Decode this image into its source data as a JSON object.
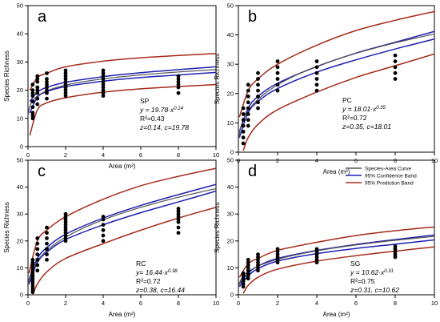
{
  "figure": {
    "xlabel": "Area",
    "xunit": "(m²)",
    "ylabel": "Species Richness",
    "legend": {
      "items": [
        {
          "label": "Species-Area Curve",
          "color": "#555555"
        },
        {
          "label": "95% Confidence Band",
          "color": "#1f1fb4"
        },
        {
          "label": "95% Prediction Band",
          "color": "#a52a1a"
        }
      ]
    }
  },
  "chart_data": [
    {
      "type": "scatter",
      "panel": "a",
      "site": "SP",
      "equation": "y = 19.78·x^0.14",
      "equation_base": "y = 19.78·x",
      "equation_exp": "0.14",
      "r2_label": "R²=0.43",
      "params": "z=0.14, c=19.78",
      "c": 19.78,
      "z": 0.14,
      "xlim": [
        0,
        10
      ],
      "ylim": [
        0,
        50
      ],
      "xticks": [
        0,
        2,
        4,
        6,
        8,
        10
      ],
      "yticks": [
        0,
        10,
        20,
        30,
        40,
        50
      ],
      "points": [
        [
          0.25,
          10
        ],
        [
          0.25,
          11
        ],
        [
          0.25,
          12
        ],
        [
          0.25,
          14
        ],
        [
          0.25,
          16
        ],
        [
          0.25,
          18
        ],
        [
          0.25,
          19
        ],
        [
          0.25,
          20
        ],
        [
          0.25,
          22
        ],
        [
          0.5,
          15
        ],
        [
          0.5,
          17
        ],
        [
          0.5,
          19
        ],
        [
          0.5,
          20
        ],
        [
          0.5,
          21
        ],
        [
          0.5,
          23
        ],
        [
          0.5,
          24
        ],
        [
          0.5,
          25
        ],
        [
          1,
          17
        ],
        [
          1,
          19
        ],
        [
          1,
          20
        ],
        [
          1,
          21
        ],
        [
          1,
          22
        ],
        [
          1,
          23
        ],
        [
          1,
          24
        ],
        [
          1,
          26
        ],
        [
          2,
          18
        ],
        [
          2,
          19
        ],
        [
          2,
          20
        ],
        [
          2,
          21
        ],
        [
          2,
          22
        ],
        [
          2,
          23
        ],
        [
          2,
          24
        ],
        [
          2,
          25
        ],
        [
          2,
          26
        ],
        [
          2,
          27
        ],
        [
          4,
          18
        ],
        [
          4,
          19
        ],
        [
          4,
          20
        ],
        [
          4,
          21
        ],
        [
          4,
          22
        ],
        [
          4,
          23
        ],
        [
          4,
          24
        ],
        [
          4,
          25
        ],
        [
          4,
          26
        ],
        [
          4,
          27
        ],
        [
          8,
          19
        ],
        [
          8,
          21
        ],
        [
          8,
          22
        ],
        [
          8,
          23
        ],
        [
          8,
          24
        ],
        [
          8,
          25
        ]
      ],
      "prediction_upper": [
        [
          0.1,
          20
        ],
        [
          0.5,
          24.5
        ],
        [
          1,
          26
        ],
        [
          2,
          28.3
        ],
        [
          4,
          30.3
        ],
        [
          6,
          31.5
        ],
        [
          8,
          32.3
        ],
        [
          10,
          33
        ]
      ],
      "prediction_lower": [
        [
          0.1,
          4
        ],
        [
          0.5,
          13
        ],
        [
          1,
          15.5
        ],
        [
          2,
          17.3
        ],
        [
          4,
          19.3
        ],
        [
          6,
          20.5
        ],
        [
          8,
          21.3
        ],
        [
          10,
          22
        ]
      ],
      "confidence_upper": [
        [
          0.1,
          16
        ],
        [
          0.5,
          19.3
        ],
        [
          1,
          21
        ],
        [
          2,
          22.8
        ],
        [
          4,
          24.8
        ],
        [
          6,
          26.2
        ],
        [
          8,
          27.3
        ],
        [
          10,
          28.3
        ]
      ],
      "confidence_lower": [
        [
          0.1,
          12
        ],
        [
          0.5,
          17.5
        ],
        [
          1,
          19.5
        ],
        [
          2,
          21.3
        ],
        [
          4,
          23.2
        ],
        [
          6,
          24.5
        ],
        [
          8,
          25.4
        ],
        [
          10,
          26.3
        ]
      ]
    },
    {
      "type": "scatter",
      "panel": "b",
      "site": "PC",
      "equation": "y = 18.01·x^0.35",
      "equation_base": "y = 18.01·x",
      "equation_exp": "0.35",
      "r2_label": "R²=0.72",
      "params": "z=0.35, c=18.01",
      "c": 18.01,
      "z": 0.35,
      "xlim": [
        0,
        10
      ],
      "ylim": [
        0,
        50
      ],
      "xticks": [
        0,
        2,
        4,
        6,
        8,
        10
      ],
      "yticks": [
        0,
        10,
        20,
        30,
        40,
        50
      ],
      "points": [
        [
          0.25,
          3
        ],
        [
          0.25,
          5
        ],
        [
          0.25,
          7
        ],
        [
          0.25,
          9
        ],
        [
          0.25,
          11
        ],
        [
          0.25,
          13
        ],
        [
          0.25,
          15
        ],
        [
          0.5,
          9
        ],
        [
          0.5,
          11
        ],
        [
          0.5,
          13
        ],
        [
          0.5,
          15
        ],
        [
          0.5,
          17
        ],
        [
          0.5,
          19
        ],
        [
          0.5,
          21
        ],
        [
          0.5,
          23
        ],
        [
          1,
          15
        ],
        [
          1,
          17
        ],
        [
          1,
          19
        ],
        [
          1,
          21
        ],
        [
          1,
          23
        ],
        [
          1,
          25
        ],
        [
          1,
          27
        ],
        [
          2,
          21
        ],
        [
          2,
          23
        ],
        [
          2,
          25
        ],
        [
          2,
          27
        ],
        [
          2,
          29
        ],
        [
          2,
          31
        ],
        [
          4,
          21
        ],
        [
          4,
          23
        ],
        [
          4,
          25
        ],
        [
          4,
          27
        ],
        [
          4,
          29
        ],
        [
          4,
          31
        ],
        [
          8,
          25
        ],
        [
          8,
          27
        ],
        [
          8,
          29
        ],
        [
          8,
          31
        ],
        [
          8,
          33
        ]
      ],
      "prediction_upper": [
        [
          0.05,
          12
        ],
        [
          0.5,
          21
        ],
        [
          1,
          25
        ],
        [
          2,
          30
        ],
        [
          4,
          36.5
        ],
        [
          6,
          41.5
        ],
        [
          8,
          45
        ],
        [
          10,
          48
        ]
      ],
      "prediction_lower": [
        [
          0.25,
          0.5
        ],
        [
          0.5,
          5
        ],
        [
          1,
          9.5
        ],
        [
          2,
          14.5
        ],
        [
          4,
          20.5
        ],
        [
          6,
          25.5
        ],
        [
          8,
          29.5
        ],
        [
          10,
          33.5
        ]
      ],
      "confidence_upper": [
        [
          0.05,
          7
        ],
        [
          0.5,
          15
        ],
        [
          1,
          19
        ],
        [
          2,
          23.5
        ],
        [
          4,
          29.2
        ],
        [
          6,
          33.8
        ],
        [
          8,
          37.5
        ],
        [
          10,
          41.2
        ]
      ],
      "confidence_lower": [
        [
          0.05,
          5
        ],
        [
          0.5,
          13.5
        ],
        [
          1,
          17.3
        ],
        [
          2,
          21.7
        ],
        [
          4,
          27.3
        ],
        [
          6,
          31.5
        ],
        [
          8,
          35.2
        ],
        [
          10,
          38.6
        ]
      ]
    },
    {
      "type": "scatter",
      "panel": "c",
      "site": "RC",
      "equation": "y= 16.44·x^0.38",
      "equation_base": "y= 16.44·x",
      "equation_exp": "0.38",
      "r2_label": "R²=0.72",
      "params": "z=0.38, c=16.44",
      "c": 16.44,
      "z": 0.38,
      "xlim": [
        0,
        10
      ],
      "ylim": [
        0,
        50
      ],
      "xticks": [
        0,
        2,
        4,
        6,
        8,
        10
      ],
      "yticks": [
        0,
        10,
        20,
        30,
        40,
        50
      ],
      "points": [
        [
          0.25,
          1
        ],
        [
          0.25,
          2
        ],
        [
          0.25,
          3
        ],
        [
          0.25,
          4
        ],
        [
          0.25,
          5
        ],
        [
          0.25,
          6
        ],
        [
          0.25,
          7
        ],
        [
          0.25,
          8
        ],
        [
          0.25,
          9
        ],
        [
          0.25,
          10
        ],
        [
          0.25,
          11
        ],
        [
          0.25,
          12
        ],
        [
          0.25,
          13
        ],
        [
          0.5,
          9
        ],
        [
          0.5,
          11
        ],
        [
          0.5,
          13
        ],
        [
          0.5,
          15
        ],
        [
          0.5,
          17
        ],
        [
          0.5,
          19
        ],
        [
          0.5,
          21
        ],
        [
          1,
          13
        ],
        [
          1,
          15
        ],
        [
          1,
          17
        ],
        [
          1,
          19
        ],
        [
          1,
          21
        ],
        [
          1,
          23
        ],
        [
          1,
          25
        ],
        [
          2,
          20
        ],
        [
          2,
          21
        ],
        [
          2,
          22
        ],
        [
          2,
          23
        ],
        [
          2,
          24
        ],
        [
          2,
          25
        ],
        [
          2,
          26
        ],
        [
          2,
          27
        ],
        [
          2,
          28
        ],
        [
          2,
          29
        ],
        [
          2,
          30
        ],
        [
          4,
          20
        ],
        [
          4,
          22
        ],
        [
          4,
          24
        ],
        [
          4,
          26
        ],
        [
          4,
          28
        ],
        [
          4,
          29
        ],
        [
          8,
          23
        ],
        [
          8,
          25
        ],
        [
          8,
          27
        ],
        [
          8,
          28
        ],
        [
          8,
          29
        ],
        [
          8,
          30
        ],
        [
          8,
          31
        ],
        [
          8,
          32
        ]
      ],
      "prediction_upper": [
        [
          0.05,
          8
        ],
        [
          0.5,
          20
        ],
        [
          1,
          24
        ],
        [
          2,
          29
        ],
        [
          4,
          35.5
        ],
        [
          6,
          40.5
        ],
        [
          8,
          44
        ],
        [
          10,
          47
        ]
      ],
      "prediction_lower": [
        [
          0.25,
          0
        ],
        [
          0.5,
          4
        ],
        [
          1,
          8.5
        ],
        [
          2,
          13.5
        ],
        [
          4,
          19
        ],
        [
          6,
          24
        ],
        [
          8,
          28.5
        ],
        [
          10,
          32.5
        ]
      ],
      "confidence_upper": [
        [
          0.05,
          5.5
        ],
        [
          0.5,
          13.5
        ],
        [
          1,
          17.5
        ],
        [
          2,
          22.5
        ],
        [
          4,
          28.5
        ],
        [
          6,
          33.2
        ],
        [
          8,
          37.2
        ],
        [
          10,
          41
        ]
      ],
      "confidence_lower": [
        [
          0.05,
          4
        ],
        [
          0.5,
          12
        ],
        [
          1,
          15.8
        ],
        [
          2,
          20.5
        ],
        [
          4,
          26
        ],
        [
          6,
          30.5
        ],
        [
          8,
          34.5
        ],
        [
          10,
          38.5
        ]
      ]
    },
    {
      "type": "scatter",
      "panel": "d",
      "site": "SG",
      "equation": "y = 10.62·x^0.31",
      "equation_base": "y = 10.62·x",
      "equation_exp": "0.31",
      "r2_label": "R²=0.75",
      "params": "z=0.31, c=10.62",
      "c": 10.62,
      "z": 0.31,
      "xlim": [
        0,
        10
      ],
      "ylim": [
        0,
        50
      ],
      "xticks": [
        0,
        2,
        4,
        6,
        8,
        10
      ],
      "yticks": [
        0,
        10,
        20,
        30,
        40,
        50
      ],
      "points": [
        [
          0.25,
          3
        ],
        [
          0.25,
          4
        ],
        [
          0.25,
          5
        ],
        [
          0.25,
          6
        ],
        [
          0.25,
          7
        ],
        [
          0.25,
          8
        ],
        [
          0.5,
          6
        ],
        [
          0.5,
          7
        ],
        [
          0.5,
          8
        ],
        [
          0.5,
          9
        ],
        [
          0.5,
          10
        ],
        [
          0.5,
          11
        ],
        [
          0.5,
          12
        ],
        [
          0.5,
          13
        ],
        [
          1,
          9
        ],
        [
          1,
          10
        ],
        [
          1,
          11
        ],
        [
          1,
          12
        ],
        [
          1,
          13
        ],
        [
          1,
          14
        ],
        [
          1,
          15
        ],
        [
          2,
          12
        ],
        [
          2,
          13
        ],
        [
          2,
          14
        ],
        [
          2,
          15
        ],
        [
          2,
          16
        ],
        [
          2,
          17
        ],
        [
          4,
          12
        ],
        [
          4,
          13
        ],
        [
          4,
          14
        ],
        [
          4,
          15
        ],
        [
          4,
          16
        ],
        [
          4,
          17
        ],
        [
          8,
          14
        ],
        [
          8,
          15
        ],
        [
          8,
          16
        ],
        [
          8,
          17
        ],
        [
          8,
          18
        ]
      ],
      "prediction_upper": [
        [
          0.05,
          6.5
        ],
        [
          0.5,
          11.5
        ],
        [
          1,
          13.5
        ],
        [
          2,
          16.5
        ],
        [
          4,
          19.5
        ],
        [
          6,
          22
        ],
        [
          8,
          23.8
        ],
        [
          10,
          25.2
        ]
      ],
      "prediction_lower": [
        [
          0.25,
          0.5
        ],
        [
          0.5,
          3.5
        ],
        [
          1,
          6.5
        ],
        [
          2,
          9.5
        ],
        [
          4,
          12.5
        ],
        [
          6,
          14.5
        ],
        [
          8,
          16.2
        ],
        [
          10,
          17.8
        ]
      ],
      "confidence_upper": [
        [
          0.05,
          4
        ],
        [
          0.5,
          8
        ],
        [
          1,
          10.7
        ],
        [
          2,
          13.5
        ],
        [
          4,
          16.5
        ],
        [
          6,
          18.7
        ],
        [
          8,
          20.5
        ],
        [
          10,
          22.2
        ]
      ],
      "confidence_lower": [
        [
          0.05,
          3
        ],
        [
          0.5,
          7
        ],
        [
          1,
          9.7
        ],
        [
          2,
          12.5
        ],
        [
          4,
          15.3
        ],
        [
          6,
          17.2
        ],
        [
          8,
          18.8
        ],
        [
          10,
          20.4
        ]
      ]
    }
  ]
}
